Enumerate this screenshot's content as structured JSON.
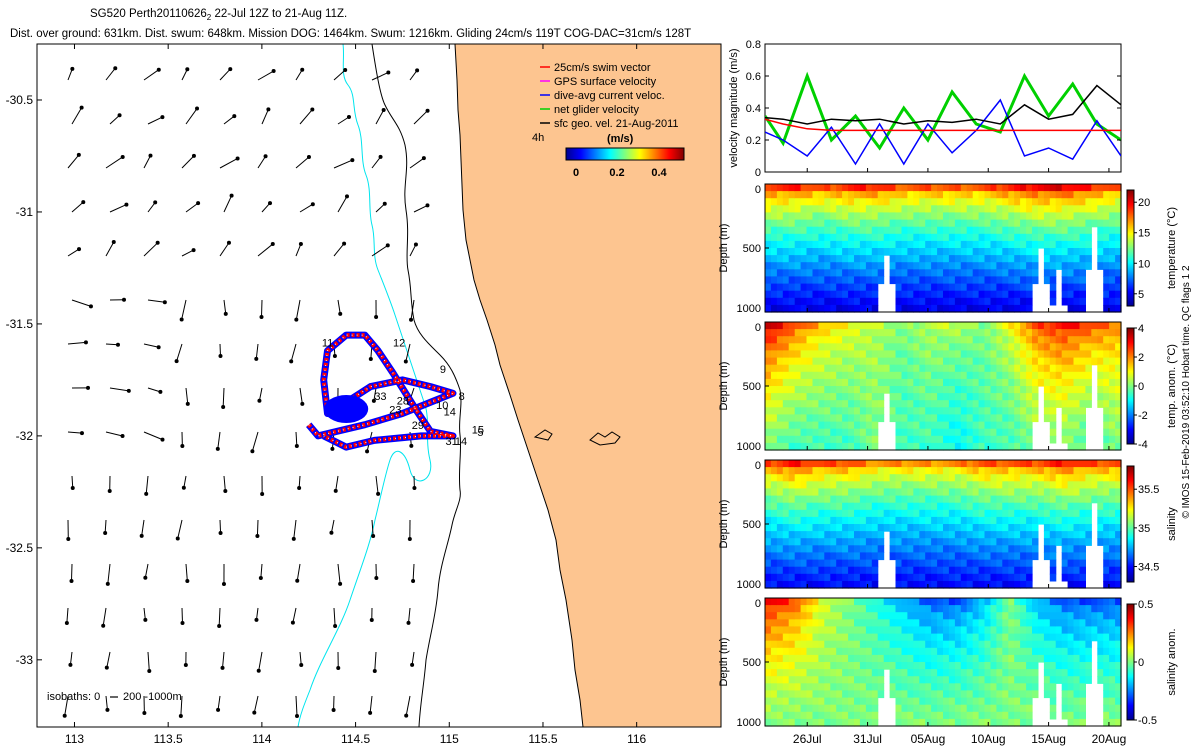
{
  "header": {
    "title_pre": "SG520 Perth20110626",
    "title_sub": "2",
    "title_post": " 22-Jul 12Z to 21-Aug 11Z.",
    "subtitle": "Dist. over ground: 631km. Dist. swum: 648km. Mission DOG: 1464km. Swum: 1216km. Gliding 24cm/s 119T COG-DAC=31cm/s 128T"
  },
  "side_label": "© IMOS 15-Feb-2019 03:52:10 Hobart time. QC flags 1  2",
  "colors": {
    "land": "#fdc590",
    "coast": "#000000",
    "isobath_200": "#00e5ee",
    "isobath_1000": "#000000",
    "track_red": "#ff0000",
    "track_blue": "#0000ff",
    "vel_green": "#00e000",
    "vel_red": "#ff0000",
    "vel_black": "#000000",
    "vel_blue": "#0000ff"
  },
  "map": {
    "legend": [
      {
        "label": "25cm/s swim vector",
        "color": "#ff0000"
      },
      {
        "label": "GPS surface velocity",
        "color": "#ff00ff"
      },
      {
        "label": "dive-avg current veloc.",
        "color": "#0000ff"
      },
      {
        "label": "net glider velocity",
        "color": "#00d000"
      },
      {
        "label": "sfc geo. vel. 21-Aug-2011",
        "color": "#000000"
      }
    ],
    "legend_tag": "4h",
    "colorbar_title": "(m/s)",
    "colorbar_ticks": [
      "0",
      "0.2",
      "0.4"
    ],
    "isobath_note": "isobaths: 0",
    "isobath_note2": "200  -1000m",
    "waypoint_labels": [
      "11",
      "12",
      "9",
      "8",
      "23",
      "14",
      "29",
      "15",
      "31",
      "14",
      "5",
      "10",
      "28",
      "33"
    ]
  },
  "chart_data": [
    {
      "type": "map",
      "xlabel": "",
      "ylabel": "",
      "xlim": [
        112.8,
        116.45
      ],
      "ylim": [
        -33.3,
        -30.25
      ],
      "x_ticks": [
        "113",
        "113.5",
        "114",
        "114.5",
        "115",
        "115.5",
        "116"
      ],
      "y_ticks": [
        "-30.5",
        "-31",
        "-31.5",
        "-32",
        "-32.5",
        "-33"
      ],
      "track_lonlat": [
        [
          114.25,
          -31.95
        ],
        [
          114.3,
          -32.0
        ],
        [
          114.4,
          -31.98
        ],
        [
          114.55,
          -31.95
        ],
        [
          114.75,
          -31.9
        ],
        [
          114.9,
          -31.85
        ],
        [
          115.02,
          -31.81
        ],
        [
          114.9,
          -31.78
        ],
        [
          114.75,
          -31.75
        ],
        [
          114.58,
          -31.78
        ],
        [
          114.45,
          -31.85
        ],
        [
          114.35,
          -31.9
        ],
        [
          114.33,
          -31.75
        ],
        [
          114.35,
          -31.62
        ],
        [
          114.45,
          -31.55
        ],
        [
          114.55,
          -31.55
        ],
        [
          114.62,
          -31.62
        ],
        [
          114.7,
          -31.72
        ],
        [
          114.82,
          -31.88
        ],
        [
          114.9,
          -31.98
        ],
        [
          115.02,
          -32.0
        ],
        [
          114.85,
          -32.0
        ],
        [
          114.6,
          -32.02
        ],
        [
          114.45,
          -32.05
        ],
        [
          114.33,
          -32.0
        ]
      ]
    },
    {
      "type": "line",
      "title": "",
      "xlabel": "",
      "ylabel": "velocity magnitude (m/s)",
      "ylim": [
        0,
        0.8
      ],
      "y_ticks": [
        "0",
        "0.2",
        "0.4",
        "0.6",
        "0.8"
      ],
      "x": [
        22.5,
        24,
        26,
        28,
        30,
        32,
        34,
        36,
        38,
        40,
        42,
        44,
        46,
        48,
        50,
        52
      ],
      "x_note": "days from 1-Jul-2011",
      "series": [
        {
          "color": "#ff0000",
          "values": [
            0.33,
            0.3,
            0.27,
            0.26,
            0.26,
            0.26,
            0.26,
            0.26,
            0.26,
            0.26,
            0.26,
            0.26,
            0.26,
            0.26,
            0.26,
            0.26
          ]
        },
        {
          "color": "#000000",
          "values": [
            0.34,
            0.33,
            0.3,
            0.33,
            0.32,
            0.33,
            0.3,
            0.32,
            0.31,
            0.33,
            0.3,
            0.42,
            0.33,
            0.36,
            0.54,
            0.42
          ]
        },
        {
          "color": "#0000ff",
          "values": [
            0.25,
            0.2,
            0.1,
            0.28,
            0.05,
            0.3,
            0.05,
            0.3,
            0.12,
            0.26,
            0.45,
            0.1,
            0.15,
            0.08,
            0.32,
            0.1
          ]
        },
        {
          "color": "#00d000",
          "values": [
            0.35,
            0.18,
            0.6,
            0.2,
            0.35,
            0.15,
            0.4,
            0.2,
            0.5,
            0.3,
            0.25,
            0.6,
            0.35,
            0.55,
            0.3,
            0.2
          ]
        }
      ]
    },
    {
      "type": "heatmap",
      "ylabel": "Depth (m)",
      "y_ticks": [
        "0",
        "500",
        "1000"
      ],
      "ylim": [
        1000,
        0
      ],
      "colorbar_label": "temperature (°C)",
      "colorbar_ticks": [
        "5",
        "10",
        "15",
        "20"
      ],
      "crange": [
        3,
        22
      ],
      "surface": [
        19,
        19,
        18,
        19,
        19,
        18,
        18,
        18,
        18,
        19,
        20,
        20,
        19,
        18
      ],
      "deep": [
        5,
        5,
        5,
        5,
        5,
        5,
        5,
        5,
        5,
        5,
        5,
        5,
        5,
        5
      ]
    },
    {
      "type": "heatmap",
      "ylabel": "Depth (m)",
      "y_ticks": [
        "0",
        "500",
        "1000"
      ],
      "ylim": [
        1000,
        0
      ],
      "colorbar_label": "temp. anom. (°C)",
      "colorbar_ticks": [
        "-4",
        "-2",
        "0",
        "2",
        "4"
      ],
      "crange": [
        -4,
        4
      ],
      "surface": [
        3.5,
        2.5,
        1.5,
        1,
        0.5,
        0,
        0.5,
        0.5,
        0,
        1,
        2.5,
        3,
        2.5,
        2
      ],
      "deep": [
        0,
        -0.5,
        -0.5,
        -0.5,
        0,
        -0.5,
        -0.5,
        -1,
        -0.5,
        -0.5,
        0,
        0,
        -0.5,
        0
      ]
    },
    {
      "type": "heatmap",
      "ylabel": "Depth (m)",
      "y_ticks": [
        "0",
        "500",
        "1000"
      ],
      "ylim": [
        1000,
        0
      ],
      "colorbar_label": "salinity",
      "colorbar_ticks": [
        "34.5",
        "35",
        "35.5"
      ],
      "crange": [
        34.3,
        35.8
      ],
      "surface": [
        35.5,
        35.6,
        35.5,
        35.5,
        35.4,
        35.4,
        35.4,
        35.4,
        35.5,
        35.5,
        35.5,
        35.6,
        35.5,
        35.5
      ],
      "deep": [
        34.5,
        34.5,
        34.5,
        34.5,
        34.5,
        34.5,
        34.5,
        34.5,
        34.5,
        34.5,
        34.5,
        34.5,
        34.5,
        34.5
      ]
    },
    {
      "type": "heatmap",
      "ylabel": "Depth (m)",
      "y_ticks": [
        "0",
        "500",
        "1000"
      ],
      "ylim": [
        1000,
        0
      ],
      "colorbar_label": "salinity anom.",
      "colorbar_ticks": [
        "-0.5",
        "0",
        "0.5"
      ],
      "crange": [
        -0.5,
        0.5
      ],
      "surface": [
        0.4,
        0.3,
        0.1,
        0,
        -0.1,
        -0.2,
        -0.3,
        -0.3,
        -0.2,
        0,
        -0.2,
        -0.3,
        -0.3,
        -0.3
      ],
      "deep": [
        0,
        0,
        0,
        0,
        0,
        0,
        0,
        0,
        0,
        0,
        0,
        0,
        0,
        0
      ],
      "x_ticks": [
        "26Jul",
        "31Jul",
        "05Aug",
        "10Aug",
        "15Aug",
        "20Aug"
      ]
    }
  ]
}
